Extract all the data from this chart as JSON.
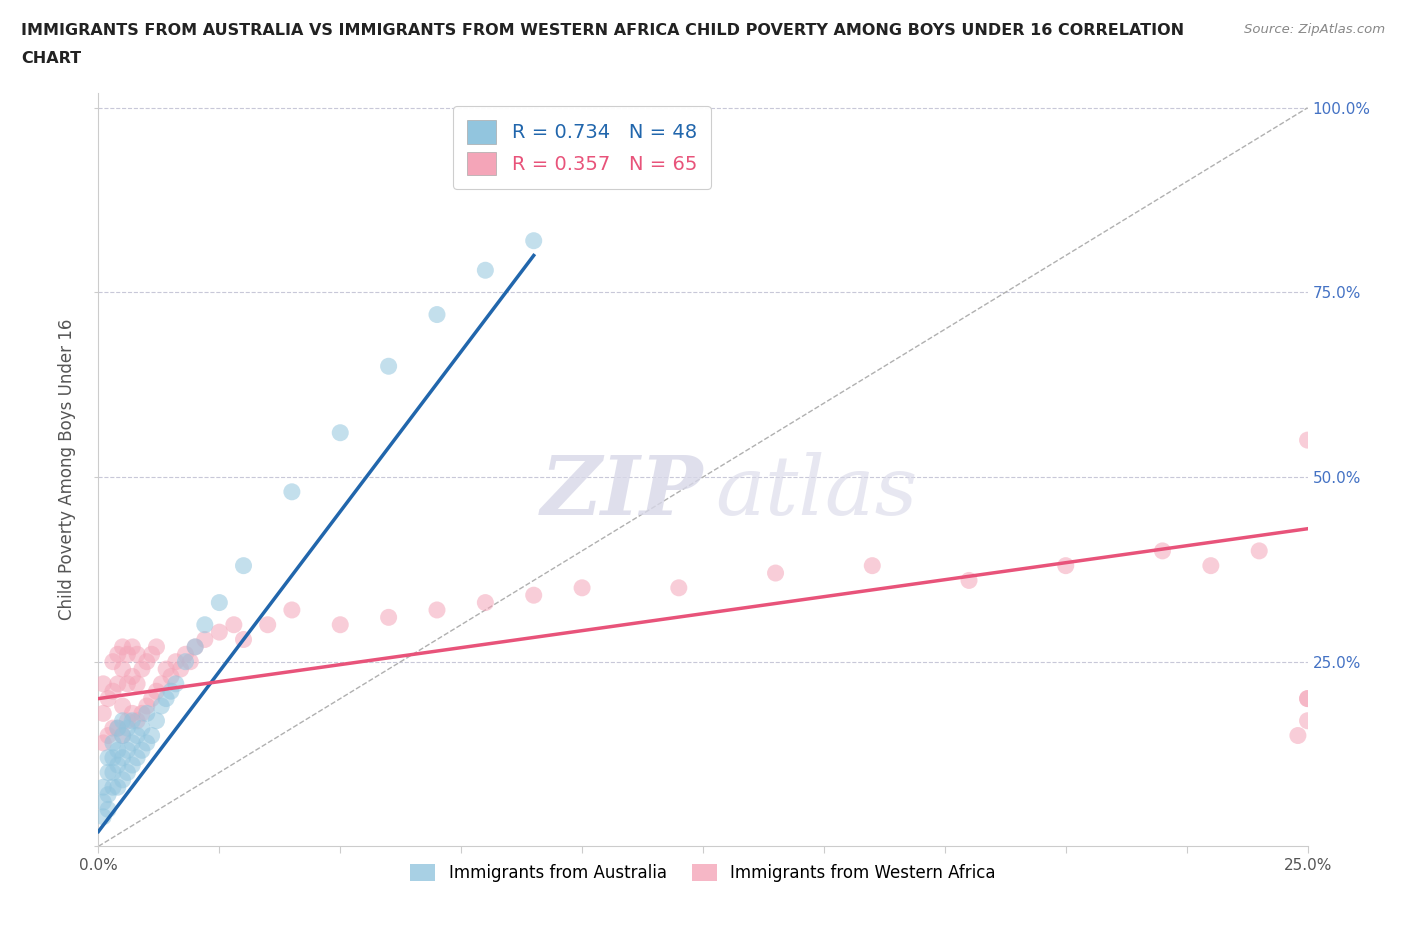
{
  "title_line1": "IMMIGRANTS FROM AUSTRALIA VS IMMIGRANTS FROM WESTERN AFRICA CHILD POVERTY AMONG BOYS UNDER 16 CORRELATION",
  "title_line2": "CHART",
  "source": "Source: ZipAtlas.com",
  "ylabel": "Child Poverty Among Boys Under 16",
  "xlabel": "",
  "xlim": [
    0.0,
    0.25
  ],
  "ylim": [
    0.0,
    1.02
  ],
  "R_australia": 0.734,
  "N_australia": 48,
  "R_western_africa": 0.357,
  "N_western_africa": 65,
  "color_australia": "#92c5de",
  "color_western_africa": "#f4a5b8",
  "line_color_australia": "#2166ac",
  "line_color_western_africa": "#e8537a",
  "diag_line_color": "#b0b0b0",
  "background_color": "#ffffff",
  "grid_color": "#c8c8d8",
  "legend_label_australia": "Immigrants from Australia",
  "legend_label_western_africa": "Immigrants from Western Africa",
  "australia_x": [
    0.001,
    0.001,
    0.001,
    0.002,
    0.002,
    0.002,
    0.002,
    0.003,
    0.003,
    0.003,
    0.003,
    0.004,
    0.004,
    0.004,
    0.004,
    0.005,
    0.005,
    0.005,
    0.005,
    0.006,
    0.006,
    0.006,
    0.007,
    0.007,
    0.007,
    0.008,
    0.008,
    0.009,
    0.009,
    0.01,
    0.01,
    0.011,
    0.012,
    0.013,
    0.014,
    0.015,
    0.016,
    0.018,
    0.02,
    0.022,
    0.025,
    0.03,
    0.04,
    0.05,
    0.06,
    0.07,
    0.08,
    0.09
  ],
  "australia_y": [
    0.04,
    0.06,
    0.08,
    0.05,
    0.07,
    0.1,
    0.12,
    0.08,
    0.1,
    0.12,
    0.14,
    0.08,
    0.11,
    0.13,
    0.16,
    0.09,
    0.12,
    0.15,
    0.17,
    0.1,
    0.13,
    0.16,
    0.11,
    0.14,
    0.17,
    0.12,
    0.15,
    0.13,
    0.16,
    0.14,
    0.18,
    0.15,
    0.17,
    0.19,
    0.2,
    0.21,
    0.22,
    0.25,
    0.27,
    0.3,
    0.33,
    0.38,
    0.48,
    0.56,
    0.65,
    0.72,
    0.78,
    0.82
  ],
  "western_africa_x": [
    0.001,
    0.001,
    0.001,
    0.002,
    0.002,
    0.003,
    0.003,
    0.003,
    0.004,
    0.004,
    0.004,
    0.005,
    0.005,
    0.005,
    0.005,
    0.006,
    0.006,
    0.006,
    0.007,
    0.007,
    0.007,
    0.008,
    0.008,
    0.008,
    0.009,
    0.009,
    0.01,
    0.01,
    0.011,
    0.011,
    0.012,
    0.012,
    0.013,
    0.014,
    0.015,
    0.016,
    0.017,
    0.018,
    0.019,
    0.02,
    0.022,
    0.025,
    0.028,
    0.03,
    0.035,
    0.04,
    0.05,
    0.06,
    0.07,
    0.08,
    0.09,
    0.1,
    0.12,
    0.14,
    0.16,
    0.18,
    0.2,
    0.22,
    0.23,
    0.24,
    0.248,
    0.25,
    0.25,
    0.25,
    0.25
  ],
  "western_africa_y": [
    0.14,
    0.18,
    0.22,
    0.15,
    0.2,
    0.16,
    0.21,
    0.25,
    0.16,
    0.22,
    0.26,
    0.15,
    0.19,
    0.24,
    0.27,
    0.17,
    0.22,
    0.26,
    0.18,
    0.23,
    0.27,
    0.17,
    0.22,
    0.26,
    0.18,
    0.24,
    0.19,
    0.25,
    0.2,
    0.26,
    0.21,
    0.27,
    0.22,
    0.24,
    0.23,
    0.25,
    0.24,
    0.26,
    0.25,
    0.27,
    0.28,
    0.29,
    0.3,
    0.28,
    0.3,
    0.32,
    0.3,
    0.31,
    0.32,
    0.33,
    0.34,
    0.35,
    0.35,
    0.37,
    0.38,
    0.36,
    0.38,
    0.4,
    0.38,
    0.4,
    0.15,
    0.55,
    0.2,
    0.17,
    0.2
  ],
  "aus_line_x0": 0.0,
  "aus_line_y0": 0.02,
  "aus_line_x1": 0.09,
  "aus_line_y1": 0.8,
  "wa_line_x0": 0.0,
  "wa_line_y0": 0.2,
  "wa_line_x1": 0.25,
  "wa_line_y1": 0.43
}
